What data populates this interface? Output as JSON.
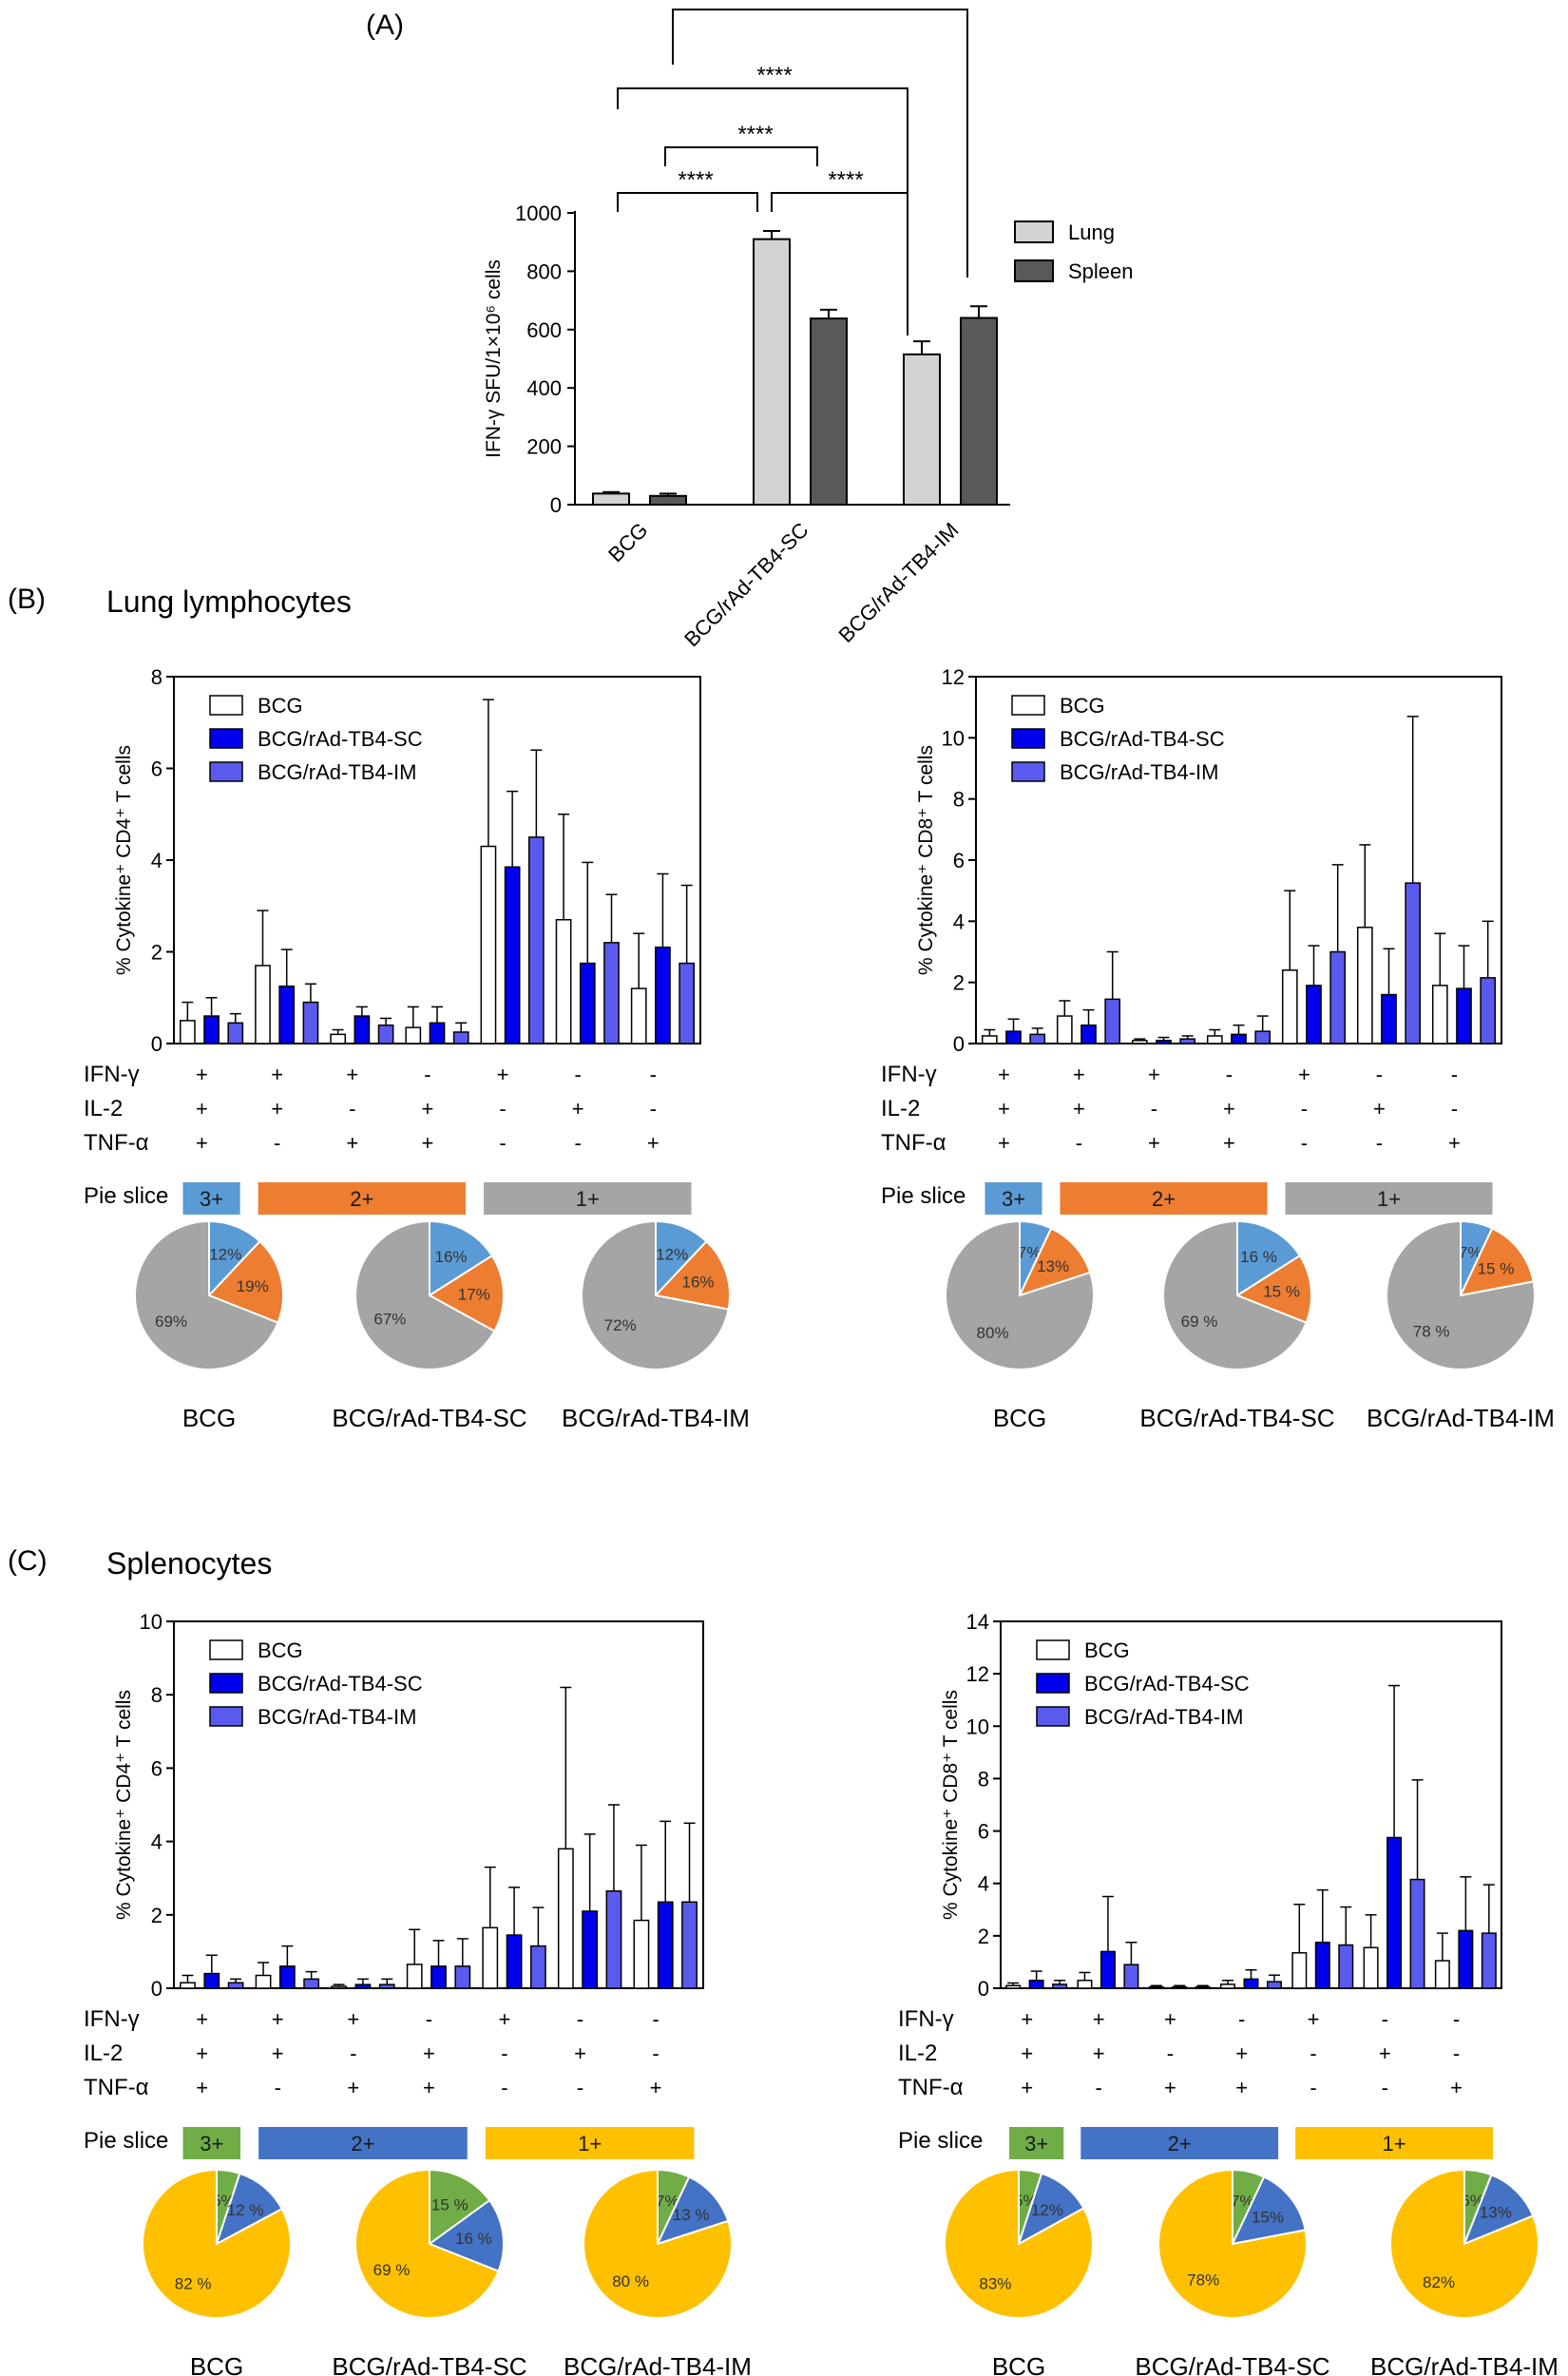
{
  "colors": {
    "lung": "#d3d3d3",
    "spleen": "#595959",
    "bcg": "#ffffff",
    "sc": "#0000ee",
    "im": "#5a5aee",
    "lung_three": "#5b9bd5",
    "lung_two": "#ed7d31",
    "lung_one": "#a5a5a5",
    "spl_three": "#70ad47",
    "spl_two": "#4472c4",
    "spl_one": "#ffc000"
  },
  "legend_groups": [
    "BCG",
    "BCG/rAd-TB4-SC",
    "BCG/rAd-TB4-IM"
  ],
  "row_labels": [
    "IFN-γ",
    "IL-2",
    "TNF-α"
  ],
  "signs": [
    [
      "+",
      "+",
      "+"
    ],
    [
      "+",
      "+",
      "-"
    ],
    [
      "+",
      "-",
      "+"
    ],
    [
      "-",
      "+",
      "+"
    ],
    [
      "+",
      "-",
      "-"
    ],
    [
      "-",
      "+",
      "-"
    ],
    [
      "-",
      "-",
      "+"
    ]
  ],
  "pie_slice_label": "Pie slice",
  "slice_labels": [
    "3+",
    "2+",
    "1+"
  ],
  "chart_data": [
    {
      "id": "A",
      "type": "bar",
      "panel_label": "(A)",
      "ylabel": "IFN-γ SFU/1×10⁶ cells",
      "ylim": [
        0,
        1000
      ],
      "yticks": [
        0,
        200,
        400,
        600,
        800,
        1000
      ],
      "categories": [
        "BCG",
        "BCG/rAd-TB4-SC",
        "BCG/rAd-TB4-IM"
      ],
      "series": [
        {
          "name": "Lung",
          "values": [
            38,
            910,
            515
          ],
          "errors": [
            5,
            28,
            45
          ]
        },
        {
          "name": "Spleen",
          "values": [
            30,
            638,
            640
          ],
          "errors": [
            8,
            30,
            40
          ]
        }
      ],
      "significance": "****",
      "brackets": [
        {
          "from": 0,
          "to": 4,
          "label": "****"
        },
        {
          "from": 0,
          "to": 2,
          "label": "****"
        },
        {
          "from": 2,
          "to": 4,
          "label": "****"
        },
        {
          "from": 0,
          "to": 6,
          "label": "****"
        },
        {
          "from": 0,
          "to": 7,
          "label": "****"
        }
      ]
    },
    {
      "id": "B_CD4",
      "type": "bar",
      "panel_label": "(B)",
      "panel_title": "Lung lymphocytes",
      "ylabel": "% Cytokine⁺ CD4⁺ T cells",
      "ylim": [
        0,
        8
      ],
      "yticks": [
        0,
        2,
        4,
        6,
        8
      ],
      "series": [
        {
          "name": "BCG",
          "values": [
            0.5,
            1.7,
            0.2,
            0.35,
            4.3,
            2.7,
            1.2
          ],
          "errors": [
            0.4,
            1.2,
            0.1,
            0.45,
            3.2,
            2.3,
            1.2
          ]
        },
        {
          "name": "BCG/rAd-TB4-SC",
          "values": [
            0.6,
            1.25,
            0.6,
            0.45,
            3.85,
            1.75,
            2.1
          ],
          "errors": [
            0.4,
            0.8,
            0.2,
            0.35,
            1.65,
            2.2,
            1.6
          ]
        },
        {
          "name": "BCG/rAd-TB4-IM",
          "values": [
            0.45,
            0.9,
            0.4,
            0.25,
            4.5,
            2.2,
            1.75
          ],
          "errors": [
            0.2,
            0.4,
            0.15,
            0.2,
            1.9,
            1.05,
            1.7
          ]
        }
      ],
      "pies": [
        {
          "label": "BCG",
          "values": [
            12,
            19,
            69
          ],
          "texts": [
            "12%",
            "19%",
            "69%"
          ]
        },
        {
          "label": "BCG/rAd-TB4-SC",
          "values": [
            16,
            17,
            67
          ],
          "texts": [
            "16%",
            "17%",
            "67%"
          ]
        },
        {
          "label": "BCG/rAd-TB4-IM",
          "values": [
            12,
            16,
            72
          ],
          "texts": [
            "12%",
            "16%",
            "72%"
          ]
        }
      ]
    },
    {
      "id": "B_CD8",
      "type": "bar",
      "ylabel": "% Cytokine⁺ CD8⁺ T cells",
      "ylim": [
        0,
        12
      ],
      "yticks": [
        0,
        2,
        4,
        6,
        8,
        10,
        12
      ],
      "series": [
        {
          "name": "BCG",
          "values": [
            0.25,
            0.9,
            0.1,
            0.25,
            2.4,
            3.8,
            1.9
          ],
          "errors": [
            0.2,
            0.5,
            0.05,
            0.2,
            2.6,
            2.7,
            1.7
          ]
        },
        {
          "name": "BCG/rAd-TB4-SC",
          "values": [
            0.4,
            0.6,
            0.1,
            0.3,
            1.9,
            1.6,
            1.8
          ],
          "errors": [
            0.4,
            0.5,
            0.1,
            0.3,
            1.3,
            1.5,
            1.4
          ]
        },
        {
          "name": "BCG/rAd-TB4-IM",
          "values": [
            0.3,
            1.45,
            0.15,
            0.4,
            3.0,
            5.25,
            2.15
          ],
          "errors": [
            0.2,
            1.55,
            0.1,
            0.5,
            2.85,
            5.45,
            1.85
          ]
        }
      ],
      "pies": [
        {
          "label": "BCG",
          "values": [
            7,
            13,
            80
          ],
          "texts": [
            "7%",
            "13%",
            "80%"
          ]
        },
        {
          "label": "BCG/rAd-TB4-SC",
          "values": [
            16,
            15,
            69
          ],
          "texts": [
            "16 %",
            "15 %",
            "69 %"
          ]
        },
        {
          "label": "BCG/rAd-TB4-IM",
          "values": [
            7,
            15,
            78
          ],
          "texts": [
            "7%",
            "15 %",
            "78 %"
          ]
        }
      ]
    },
    {
      "id": "C_CD4",
      "type": "bar",
      "panel_label": "(C)",
      "panel_title": "Splenocytes",
      "ylabel": "% Cytokine⁺ CD4⁺ T cells",
      "ylim": [
        0,
        10
      ],
      "yticks": [
        0,
        2,
        4,
        6,
        8,
        10
      ],
      "series": [
        {
          "name": "BCG",
          "values": [
            0.15,
            0.35,
            0.05,
            0.65,
            1.65,
            3.8,
            1.85
          ],
          "errors": [
            0.2,
            0.35,
            0.05,
            0.95,
            1.65,
            4.4,
            2.05
          ]
        },
        {
          "name": "BCG/rAd-TB4-SC",
          "values": [
            0.4,
            0.6,
            0.1,
            0.6,
            1.45,
            2.1,
            2.35
          ],
          "errors": [
            0.5,
            0.55,
            0.15,
            0.7,
            1.3,
            2.1,
            2.2
          ]
        },
        {
          "name": "BCG/rAd-TB4-IM",
          "values": [
            0.15,
            0.25,
            0.1,
            0.6,
            1.15,
            2.65,
            2.35
          ],
          "errors": [
            0.1,
            0.2,
            0.15,
            0.75,
            1.05,
            2.35,
            2.15
          ]
        }
      ],
      "pies": [
        {
          "label": "BCG",
          "values": [
            5,
            12,
            82
          ],
          "texts": [
            "5%",
            "12 %",
            "82 %"
          ]
        },
        {
          "label": "BCG/rAd-TB4-SC",
          "values": [
            15,
            16,
            69
          ],
          "texts": [
            "15 %",
            "16 %",
            "69 %"
          ]
        },
        {
          "label": "BCG/rAd-TB4-IM",
          "values": [
            7,
            13,
            80
          ],
          "texts": [
            "7%",
            "13 %",
            "80 %"
          ]
        }
      ]
    },
    {
      "id": "C_CD8",
      "type": "bar",
      "ylabel": "% Cytokine⁺ CD8⁺ T cells",
      "ylim": [
        0,
        14
      ],
      "yticks": [
        0,
        2,
        4,
        6,
        8,
        10,
        12,
        14
      ],
      "series": [
        {
          "name": "BCG",
          "values": [
            0.1,
            0.3,
            0.05,
            0.15,
            1.35,
            1.55,
            1.05
          ],
          "errors": [
            0.1,
            0.3,
            0.05,
            0.15,
            1.85,
            1.25,
            1.05
          ]
        },
        {
          "name": "BCG/rAd-TB4-SC",
          "values": [
            0.3,
            1.4,
            0.05,
            0.35,
            1.75,
            5.75,
            2.2
          ],
          "errors": [
            0.35,
            2.1,
            0.05,
            0.35,
            2.0,
            5.8,
            2.05
          ]
        },
        {
          "name": "BCG/rAd-TB4-IM",
          "values": [
            0.15,
            0.9,
            0.05,
            0.25,
            1.65,
            4.15,
            2.1
          ],
          "errors": [
            0.15,
            0.85,
            0.05,
            0.25,
            1.45,
            3.8,
            1.85
          ]
        }
      ],
      "pies": [
        {
          "label": "BCG",
          "values": [
            5,
            12,
            83
          ],
          "texts": [
            "5%",
            "12%",
            "83%"
          ]
        },
        {
          "label": "BCG/rAd-TB4-SC",
          "values": [
            7,
            15,
            78
          ],
          "texts": [
            "7%",
            "15%",
            "78%"
          ]
        },
        {
          "label": "BCG/rAd-TB4-IM",
          "values": [
            6,
            13,
            82
          ],
          "texts": [
            "6%",
            "13%",
            "82%"
          ]
        }
      ]
    }
  ]
}
